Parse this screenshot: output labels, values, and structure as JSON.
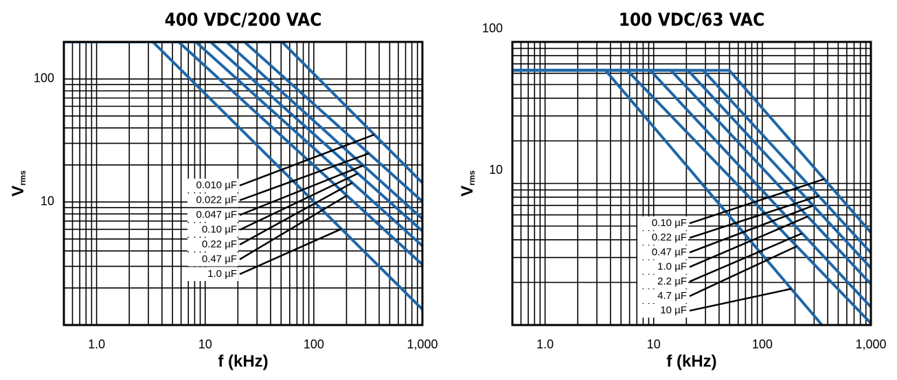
{
  "chart_data": [
    {
      "type": "line",
      "title": "400 VDC/200 VAC",
      "xlabel": "f (kHz)",
      "ylabel": {
        "main": "V",
        "sub": "rms"
      },
      "log_x": true,
      "log_y": true,
      "xlim": [
        0.5,
        1000
      ],
      "ylim": [
        1,
        200
      ],
      "xticks": [
        {
          "value": 1,
          "label": "1.0"
        },
        10,
        100,
        {
          "value": 1000,
          "label": "1,000"
        }
      ],
      "yticks": [
        10,
        100
      ],
      "xgrid": [
        0.6,
        0.7,
        0.8,
        0.9,
        1,
        2,
        3,
        4,
        5,
        6,
        7,
        8,
        9,
        10,
        20,
        30,
        40,
        50,
        60,
        70,
        80,
        90,
        100,
        200,
        300,
        400,
        500,
        600,
        700,
        800,
        900
      ],
      "ygrid": [
        2,
        3,
        4,
        5,
        6,
        7,
        8,
        9,
        10,
        20,
        30,
        40,
        50,
        60,
        70,
        80,
        90,
        100
      ],
      "color": "#1f66a8",
      "series": [
        {
          "name": "0.010 µF",
          "x": [
            0.5,
            51,
            1000
          ],
          "values": [
            200,
            200,
            14.3
          ]
        },
        {
          "name": "0.022 µF",
          "x": [
            0.5,
            23,
            1000
          ],
          "values": [
            200,
            200,
            10.1
          ]
        },
        {
          "name": "0.047 µF",
          "x": [
            0.5,
            15.7,
            1000
          ],
          "values": [
            200,
            200,
            7.3
          ]
        },
        {
          "name": "0.10 µF",
          "x": [
            0.5,
            11.2,
            1000
          ],
          "values": [
            200,
            200,
            5.8
          ]
        },
        {
          "name": "0.22 µF",
          "x": [
            0.5,
            8.2,
            1000
          ],
          "values": [
            200,
            200,
            4.4
          ]
        },
        {
          "name": "0.47 µF",
          "x": [
            0.5,
            5.7,
            1000
          ],
          "values": [
            200,
            200,
            3.1
          ]
        },
        {
          "name": "1.0 µF",
          "x": [
            0.5,
            3.3,
            1000
          ],
          "values": [
            200,
            200,
            1.34
          ]
        }
      ]
    },
    {
      "type": "line",
      "title": "100 VDC/63 VAC",
      "xlabel": "f (kHz)",
      "ylabel": {
        "main": "V",
        "sub": "rms"
      },
      "log_x": true,
      "log_y": true,
      "xlim": [
        0.5,
        1000
      ],
      "ylim": [
        1,
        100
      ],
      "xticks": [
        {
          "value": 1,
          "label": "1.0"
        },
        10,
        100,
        {
          "value": 1000,
          "label": "1,000"
        }
      ],
      "yticks": [
        10,
        100
      ],
      "xgrid": [
        0.6,
        0.7,
        0.8,
        0.9,
        1,
        2,
        3,
        4,
        5,
        6,
        7,
        8,
        9,
        10,
        20,
        30,
        40,
        50,
        60,
        70,
        80,
        90,
        100,
        200,
        300,
        400,
        500,
        600,
        700,
        800,
        900
      ],
      "ygrid": [
        2,
        3,
        4,
        5,
        6,
        7,
        8,
        9,
        10,
        20,
        30,
        40,
        50,
        60,
        70,
        80,
        90
      ],
      "color": "#1f66a8",
      "series": [
        {
          "name": "0.10 µF",
          "x": [
            0.5,
            49.7,
            1000
          ],
          "values": [
            63,
            63,
            4.5
          ]
        },
        {
          "name": "0.22 µF",
          "x": [
            0.5,
            28.6,
            1000
          ],
          "values": [
            63,
            63,
            3.24
          ]
        },
        {
          "name": "0.47 µF",
          "x": [
            0.5,
            20.7,
            1000
          ],
          "values": [
            63,
            63,
            2.53
          ]
        },
        {
          "name": "1.0 µF",
          "x": [
            0.5,
            14.4,
            1000
          ],
          "values": [
            63,
            63,
            1.95
          ]
        },
        {
          "name": "2.2 µF",
          "x": [
            0.5,
            9.3,
            1000
          ],
          "values": [
            63,
            63,
            1.34
          ]
        },
        {
          "name": "4.7 µF",
          "x": [
            0.5,
            5.7,
            1000
          ],
          "values": [
            63,
            63,
            1.03
          ]
        },
        {
          "name": "10 µF",
          "x": [
            0.5,
            3.6,
            355
          ],
          "values": [
            63,
            63,
            1
          ]
        }
      ]
    }
  ]
}
